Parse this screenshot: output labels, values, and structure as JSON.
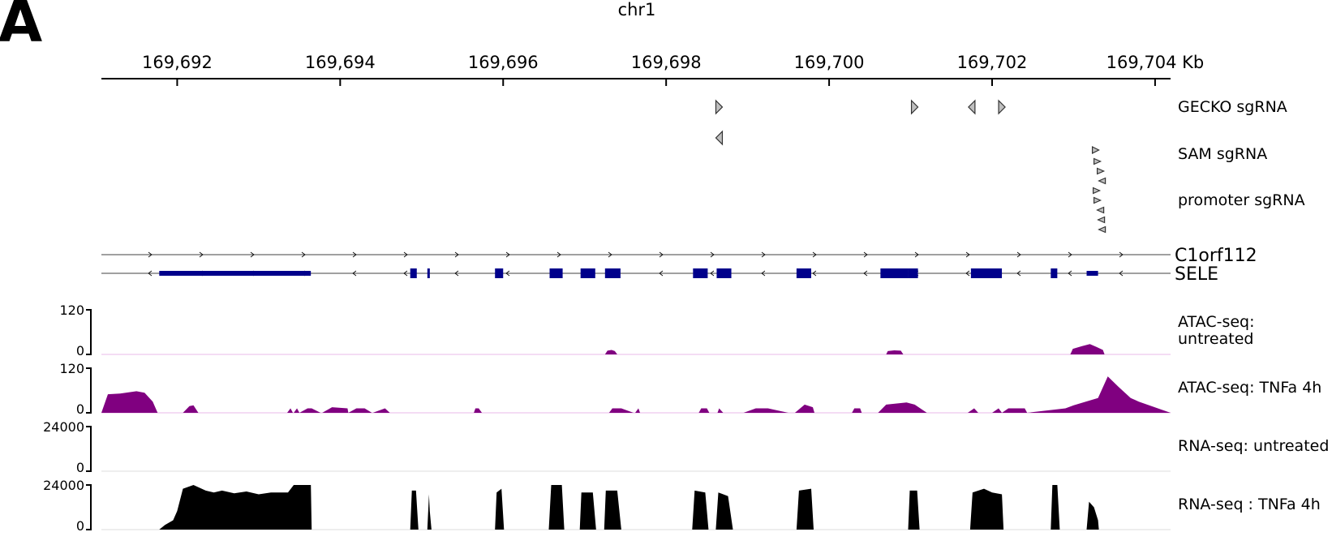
{
  "panel_label": "A",
  "chromosome": "chr1",
  "axis": {
    "unit": "Kb",
    "range_kb": [
      169691.07,
      169704.19
    ],
    "ticks_kb": [
      169692,
      169694,
      169696,
      169698,
      169700,
      169702,
      169704
    ],
    "tick_labels": [
      "169,692",
      "169,694",
      "169,696",
      "169,698",
      "169,700",
      "169,702",
      "169,704 Kb"
    ]
  },
  "tracks": {
    "gecko": {
      "label": "GECKO sgRNA",
      "guides": [
        {
          "pos_kb": 169698.65,
          "strand": "+"
        },
        {
          "pos_kb": 169701.05,
          "strand": "+"
        },
        {
          "pos_kb": 169701.75,
          "strand": "-"
        },
        {
          "pos_kb": 169702.12,
          "strand": "+"
        }
      ]
    },
    "sam": {
      "label": "SAM sgRNA",
      "guides": [
        {
          "pos_kb": 169698.65,
          "strand": "-",
          "row": 0
        },
        {
          "pos_kb": 169703.27,
          "strand": "+",
          "row": 1
        }
      ]
    },
    "promoter": {
      "label": "promoter sgRNA",
      "guides": [
        {
          "pos_kb": 169703.29,
          "strand": "+",
          "row": 0
        },
        {
          "pos_kb": 169703.33,
          "strand": "+",
          "row": 1
        },
        {
          "pos_kb": 169703.35,
          "strand": "-",
          "row": 2
        },
        {
          "pos_kb": 169703.28,
          "strand": "+",
          "row": 3
        },
        {
          "pos_kb": 169703.29,
          "strand": "+",
          "row": 4
        },
        {
          "pos_kb": 169703.33,
          "strand": "-",
          "row": 5
        },
        {
          "pos_kb": 169703.34,
          "strand": "-",
          "row": 6
        },
        {
          "pos_kb": 169703.35,
          "strand": "-",
          "row": 7
        }
      ]
    },
    "genes": [
      {
        "name": "C1orf112",
        "strand": "+",
        "start_kb": 169691.07,
        "end_kb": 169704.19,
        "exons": []
      },
      {
        "name": "SELE",
        "strand": "-",
        "start_kb": 169691.07,
        "end_kb": 169704.19,
        "exons": [
          {
            "start_kb": 169691.78,
            "end_kb": 169693.64,
            "thin": true
          },
          {
            "start_kb": 169694.86,
            "end_kb": 169694.94
          },
          {
            "start_kb": 169695.07,
            "end_kb": 169695.1
          },
          {
            "start_kb": 169695.9,
            "end_kb": 169696.0
          },
          {
            "start_kb": 169696.57,
            "end_kb": 169696.73
          },
          {
            "start_kb": 169696.95,
            "end_kb": 169697.13
          },
          {
            "start_kb": 169697.25,
            "end_kb": 169697.44
          },
          {
            "start_kb": 169698.33,
            "end_kb": 169698.51
          },
          {
            "start_kb": 169698.62,
            "end_kb": 169698.8
          },
          {
            "start_kb": 169699.6,
            "end_kb": 169699.78
          },
          {
            "start_kb": 169700.63,
            "end_kb": 169700.97
          },
          {
            "start_kb": 169700.97,
            "end_kb": 169701.09
          },
          {
            "start_kb": 169701.74,
            "end_kb": 169702.12
          },
          {
            "start_kb": 169702.72,
            "end_kb": 169702.8
          },
          {
            "start_kb": 169703.16,
            "end_kb": 169703.3,
            "thin": true
          }
        ]
      }
    ]
  },
  "chart_data": [
    {
      "type": "area",
      "label": "ATAC-seq: untreated",
      "color": "#800080",
      "ylim": [
        0,
        120
      ],
      "yticks": [
        "120",
        "0"
      ],
      "x_kb": [
        169691.07,
        169697.25,
        169697.28,
        169697.33,
        169697.37,
        169697.4,
        169700.7,
        169700.72,
        169700.8,
        169700.88,
        169700.91,
        169702.96,
        169702.99,
        169703.1,
        169703.2,
        169703.28,
        169703.36,
        169703.38,
        169704.19
      ],
      "values": [
        0,
        0,
        10,
        12,
        9,
        0,
        0,
        9,
        11,
        10,
        0,
        0,
        15,
        22,
        28,
        20,
        12,
        0,
        0
      ]
    },
    {
      "type": "area",
      "label": "ATAC-seq: TNFa 4h",
      "color": "#800080",
      "ylim": [
        0,
        120
      ],
      "yticks": [
        "120",
        "0"
      ],
      "x_kb": [
        169691.07,
        169691.15,
        169691.3,
        169691.5,
        169691.6,
        169691.7,
        169691.76,
        169692.07,
        169692.15,
        169692.2,
        169692.26,
        169693.35,
        169693.39,
        169693.42,
        169693.43,
        169693.47,
        169693.5,
        169693.6,
        169693.65,
        169693.76,
        169693.78,
        169693.9,
        169694.09,
        169694.1,
        169694.2,
        169694.3,
        169694.39,
        169694.4,
        169694.55,
        169694.61,
        169695.64,
        169695.66,
        169695.7,
        169695.74,
        169697.3,
        169697.34,
        169697.45,
        169697.6,
        169697.62,
        169697.66,
        169697.68,
        169698.4,
        169698.43,
        169698.5,
        169698.53,
        169698.63,
        169698.65,
        169698.7,
        169698.95,
        169699.1,
        169699.25,
        169699.5,
        169699.58,
        169699.7,
        169699.8,
        169699.82,
        169700.28,
        169700.31,
        169700.38,
        169700.4,
        169700.6,
        169700.7,
        169700.95,
        169701.05,
        169701.2,
        169701.25,
        169701.7,
        169701.78,
        169701.83,
        169702.0,
        169702.08,
        169702.12,
        169702.2,
        169702.4,
        169702.43,
        169702.9,
        169703.0,
        169703.15,
        169703.3,
        169703.42,
        169703.55,
        169703.7,
        169703.8,
        169704.19
      ],
      "values": [
        0,
        50,
        52,
        58,
        54,
        30,
        0,
        0,
        18,
        20,
        0,
        0,
        12,
        0,
        0,
        12,
        0,
        12,
        12,
        0,
        0,
        15,
        12,
        0,
        12,
        12,
        0,
        0,
        12,
        0,
        0,
        12,
        12,
        0,
        0,
        12,
        12,
        0,
        0,
        12,
        0,
        0,
        12,
        12,
        0,
        0,
        12,
        0,
        0,
        12,
        12,
        0,
        0,
        22,
        15,
        0,
        0,
        12,
        12,
        0,
        0,
        22,
        28,
        22,
        0,
        0,
        0,
        12,
        0,
        0,
        12,
        0,
        12,
        12,
        0,
        12,
        20,
        30,
        40,
        98,
        70,
        40,
        30,
        0
      ],
      "note_end_kb": 169703.82
    },
    {
      "type": "area",
      "label": "RNA-seq: untreated",
      "color": "#000000",
      "ylim": [
        0,
        24000
      ],
      "yticks": [
        "24000",
        "0"
      ],
      "x_kb": [
        169691.07,
        169704.19
      ],
      "values": [
        0,
        0
      ]
    },
    {
      "type": "area",
      "label": "RNA-seq : TNFa 4h",
      "color": "#000000",
      "ylim": [
        0,
        24000
      ],
      "yticks": [
        "24000",
        "0"
      ],
      "x_kb": [
        169691.07,
        169691.78,
        169691.85,
        169691.95,
        169692.0,
        169692.07,
        169692.2,
        169692.35,
        169692.45,
        169692.55,
        169692.7,
        169692.85,
        169693.0,
        169693.15,
        169693.28,
        169693.32,
        169693.36,
        169693.43,
        169693.55,
        169693.62,
        169693.64,
        169693.65,
        169694.86,
        169694.88,
        169694.93,
        169694.96,
        169694.97,
        169695.07,
        169695.09,
        169695.1,
        169695.12,
        169695.9,
        169695.92,
        169695.98,
        169696.01,
        169696.56,
        169696.59,
        169696.72,
        169696.75,
        169696.94,
        169696.96,
        169697.0,
        169697.1,
        169697.14,
        169697.24,
        169697.26,
        169697.4,
        169697.45,
        169698.32,
        169698.35,
        169698.48,
        169698.52,
        169698.61,
        169698.64,
        169698.76,
        169698.82,
        169699.6,
        169699.63,
        169699.78,
        169699.81,
        169700.97,
        169700.99,
        169701.08,
        169701.11,
        169701.73,
        169701.76,
        169701.9,
        169702.0,
        169702.12,
        169702.14,
        169702.72,
        169702.74,
        169702.8,
        169702.83,
        169703.16,
        169703.19,
        169703.25,
        169703.3,
        169703.31
      ],
      "values": [
        0,
        0,
        2500,
        5000,
        10000,
        22000,
        24000,
        21000,
        20000,
        21000,
        19500,
        20500,
        19000,
        20000,
        20000,
        20000,
        20000,
        24000,
        24000,
        24000,
        24000,
        0,
        0,
        21000,
        21000,
        0,
        0,
        0,
        19000,
        10000,
        0,
        0,
        20000,
        22000,
        0,
        0,
        24000,
        24000,
        0,
        0,
        20000,
        20000,
        20000,
        0,
        0,
        21000,
        21000,
        0,
        0,
        21000,
        20000,
        0,
        0,
        20000,
        18000,
        0,
        0,
        21000,
        22000,
        0,
        0,
        21000,
        21000,
        0,
        0,
        20000,
        22000,
        20000,
        19000,
        0,
        0,
        24000,
        24000,
        0,
        0,
        15000,
        12000,
        5000,
        0
      ]
    }
  ]
}
